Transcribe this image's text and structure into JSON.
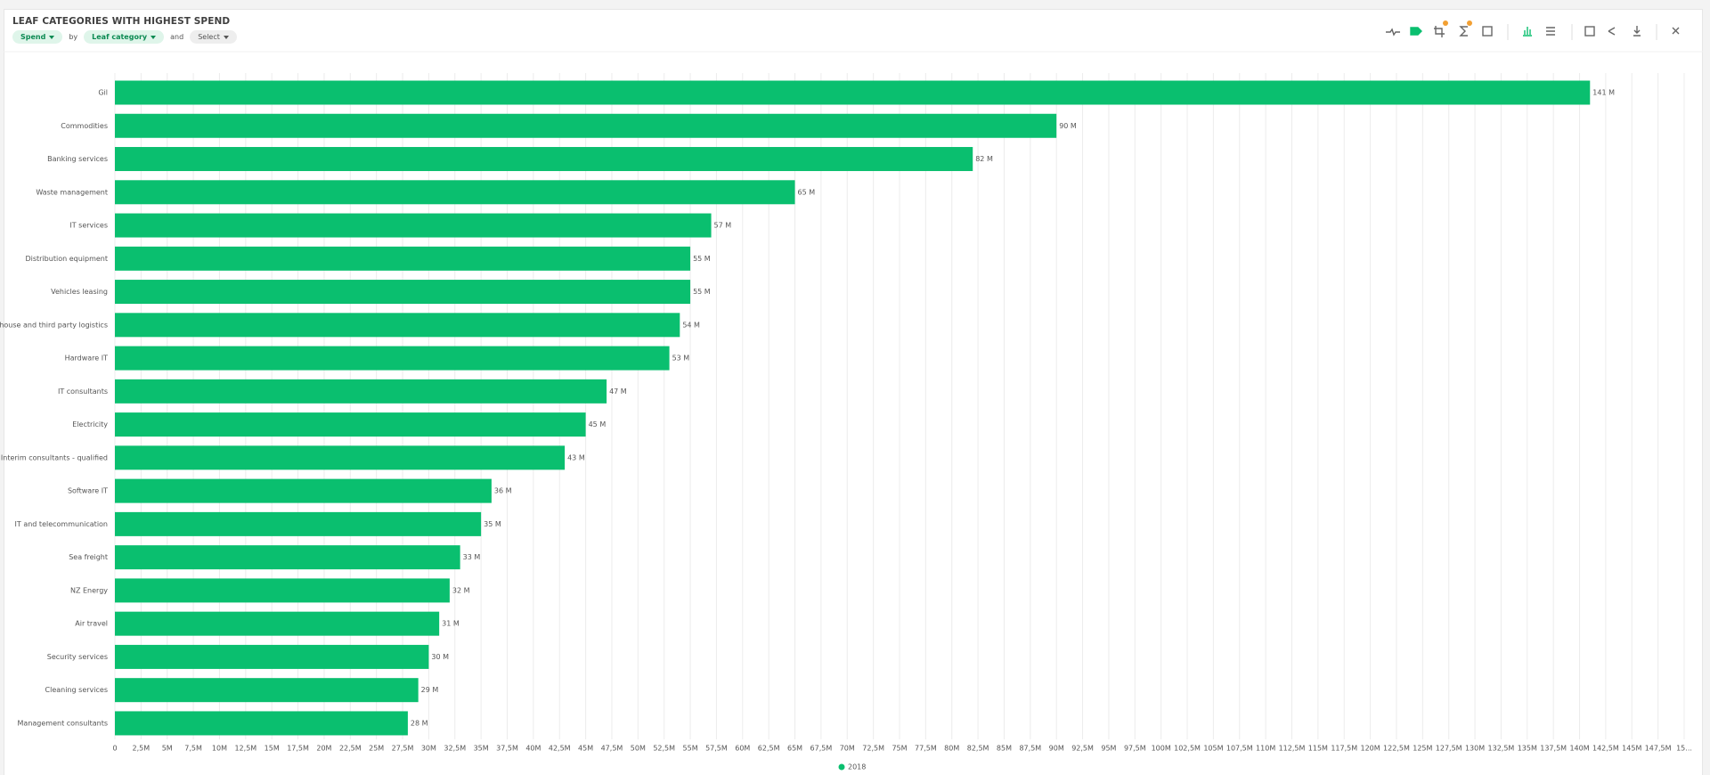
{
  "header": {
    "title": "LEAF CATEGORIES WITH HIGHEST SPEND",
    "measure": "Spend",
    "by": "by",
    "dimension": "Leaf category",
    "and": "and",
    "select": "Select"
  },
  "chart_data": {
    "type": "barh",
    "categories": [
      "Gil",
      "Commodities",
      "Banking services",
      "Waste management",
      "IT services",
      "Distribution equipment",
      "Vehicles leasing",
      "Warehouse and third party logistics",
      "Hardware IT",
      "IT consultants",
      "Electricity",
      "Interim consultants - qualified",
      "Software IT",
      "IT and telecommunication",
      "Sea freight",
      "NZ Energy",
      "Air travel",
      "Security services",
      "Cleaning services",
      "Management consultants"
    ],
    "series": [
      {
        "name": "2018",
        "color": "#0abf6f",
        "values": [
          141,
          90,
          82,
          65,
          57,
          55,
          55,
          54,
          53,
          47,
          45,
          43,
          36,
          35,
          33,
          32,
          31,
          30,
          29,
          28
        ],
        "value_labels": [
          "141 M",
          "90 M",
          "82 M",
          "65 M",
          "57 M",
          "55 M",
          "55 M",
          "54 M",
          "53 M",
          "47 M",
          "45 M",
          "43 M",
          "36 M",
          "35 M",
          "33 M",
          "32 M",
          "31 M",
          "30 M",
          "29 M",
          "28 M"
        ]
      }
    ],
    "xlim": [
      0,
      150
    ],
    "xticks": [
      0,
      {
        "value": 2.5,
        "label": "2,5M"
      },
      {
        "value": 5,
        "label": "5M"
      },
      {
        "value": 7.5,
        "label": "7,5M"
      },
      {
        "value": 10,
        "label": "10M"
      },
      {
        "value": 12.5,
        "label": "12,5M"
      },
      {
        "value": 15,
        "label": "15M"
      },
      {
        "value": 17.5,
        "label": "17,5M"
      },
      {
        "value": 20,
        "label": "20M"
      },
      {
        "value": 22.5,
        "label": "22,5M"
      },
      {
        "value": 25,
        "label": "25M"
      },
      {
        "value": 27.5,
        "label": "27,5M"
      },
      {
        "value": 30,
        "label": "30M"
      },
      {
        "value": 32.5,
        "label": "32,5M"
      },
      {
        "value": 35,
        "label": "35M"
      },
      {
        "value": 37.5,
        "label": "37,5M"
      },
      {
        "value": 40,
        "label": "40M"
      },
      {
        "value": 42.5,
        "label": "42,5M"
      },
      {
        "value": 45,
        "label": "45M"
      },
      {
        "value": 47.5,
        "label": "47,5M"
      },
      {
        "value": 50,
        "label": "50M"
      },
      {
        "value": 52.5,
        "label": "52,5M"
      },
      {
        "value": 55,
        "label": "55M"
      },
      {
        "value": 57.5,
        "label": "57,5M"
      },
      {
        "value": 60,
        "label": "60M"
      },
      {
        "value": 62.5,
        "label": "62,5M"
      },
      {
        "value": 65,
        "label": "65M"
      },
      {
        "value": 67.5,
        "label": "67,5M"
      },
      {
        "value": 70,
        "label": "70M"
      },
      {
        "value": 72.5,
        "label": "72,5M"
      },
      {
        "value": 75,
        "label": "75M"
      },
      {
        "value": 77.5,
        "label": "77,5M"
      },
      {
        "value": 80,
        "label": "80M"
      },
      {
        "value": 82.5,
        "label": "82,5M"
      },
      {
        "value": 85,
        "label": "85M"
      },
      {
        "value": 87.5,
        "label": "87,5M"
      },
      {
        "value": 90,
        "label": "90M"
      },
      {
        "value": 92.5,
        "label": "92,5M"
      },
      {
        "value": 95,
        "label": "95M"
      },
      {
        "value": 97.5,
        "label": "97,5M"
      },
      {
        "value": 100,
        "label": "100M"
      },
      {
        "value": 102.5,
        "label": "102,5M"
      },
      {
        "value": 105,
        "label": "105M"
      },
      {
        "value": 107.5,
        "label": "107,5M"
      },
      {
        "value": 110,
        "label": "110M"
      },
      {
        "value": 112.5,
        "label": "112,5M"
      },
      {
        "value": 115,
        "label": "115M"
      },
      {
        "value": 117.5,
        "label": "117,5M"
      },
      {
        "value": 120,
        "label": "120M"
      },
      {
        "value": 122.5,
        "label": "122,5M"
      },
      {
        "value": 125,
        "label": "125M"
      },
      {
        "value": 127.5,
        "label": "127,5M"
      },
      {
        "value": 130,
        "label": "130M"
      },
      {
        "value": 132.5,
        "label": "132,5M"
      },
      {
        "value": 135,
        "label": "135M"
      },
      {
        "value": 137.5,
        "label": "137,5M"
      },
      {
        "value": 140,
        "label": "140M"
      },
      {
        "value": 142.5,
        "label": "142,5M"
      },
      {
        "value": 145,
        "label": "145M"
      },
      {
        "value": 147.5,
        "label": "147,5M"
      },
      {
        "value": 150,
        "label": "15..."
      }
    ],
    "grid": true,
    "legend": "bottom"
  }
}
